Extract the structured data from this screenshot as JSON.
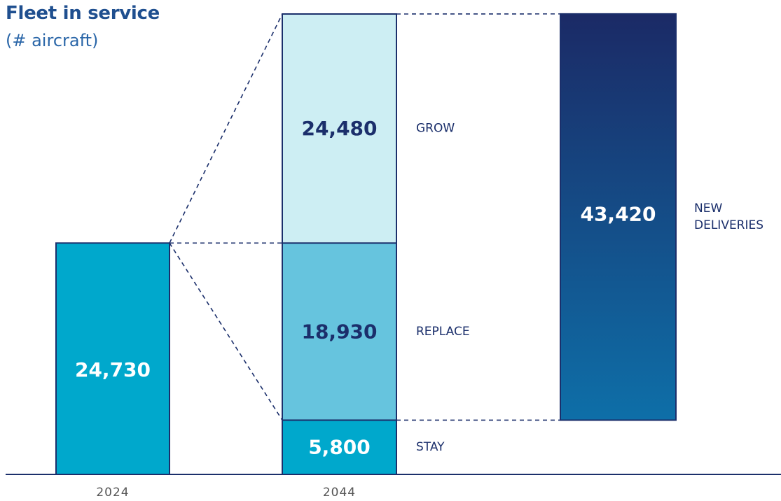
{
  "chart_data": {
    "type": "bar",
    "title": "Fleet in service",
    "subtitle": "(# aircraft)",
    "colors": {
      "bar_2024": "#00a8cc",
      "grow": "#cdeef3",
      "replace": "#66c4de",
      "stay": "#00a8cc",
      "deliveries_top": "#1b2a66",
      "deliveries_bottom": "#0e6fa8",
      "outline": "#1b2f6b",
      "dashed": "#1b2f6b",
      "axis": "#1b2f6b",
      "dark_text": "#1b2f6b",
      "white_text": "#ffffff",
      "tick_text": "#555555"
    },
    "categories": [
      "2024",
      "2044"
    ],
    "bar_2024": {
      "category": "2024",
      "value": 24730,
      "label": "24,730"
    },
    "bar_2044_segments": [
      {
        "name": "STAY",
        "value": 5800,
        "label": "5,800"
      },
      {
        "name": "REPLACE",
        "value": 18930,
        "label": "18,930"
      },
      {
        "name": "GROW",
        "value": 24480,
        "label": "24,480"
      }
    ],
    "new_deliveries": {
      "name_lines": [
        "NEW",
        "DELIVERIES"
      ],
      "value": 43420,
      "label": "43,420"
    }
  }
}
